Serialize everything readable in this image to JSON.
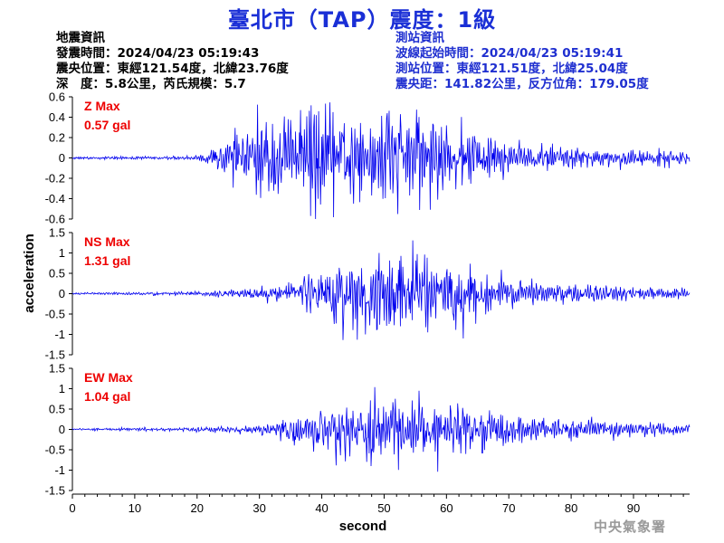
{
  "header": {
    "title": "臺北市（TAP）震度：1級",
    "quake_info_heading": "地震資訊",
    "origin_time": "發震時間：2024/04/23 05:19:43",
    "epicenter": "震央位置：東經121.54度，北緯23.76度",
    "depth_magnitude": "深　度：5.8公里，芮氏規模：5.7",
    "station_info_heading": "測站資訊",
    "wave_start_time": "波線起始時間：2024/04/23 05:19:41",
    "station_location": "測站位置：東經121.51度，北緯25.04度",
    "distance_azimuth": "震央距：141.82公里，反方位角：179.05度"
  },
  "footer": {
    "agency": "中央氣象署"
  },
  "colors": {
    "trace": "#0000ee",
    "annotation": "#ee0000",
    "title": "#1a2fd6",
    "station_text": "#1f2fd0"
  },
  "chart_data": {
    "type": "line",
    "xlabel": "second",
    "ylabel": "acceleration",
    "xlim": [
      0,
      99
    ],
    "xticks": [
      0,
      10,
      20,
      30,
      40,
      50,
      60,
      70,
      80,
      90
    ],
    "panels": [
      {
        "name": "Z",
        "label": "Z Max",
        "max_text": "0.57 gal",
        "ylim": [
          -0.6,
          0.6
        ],
        "yticks": [
          -0.6,
          -0.4,
          -0.2,
          0,
          0.2,
          0.4,
          0.6
        ],
        "ytick_labels": [
          "-0.6",
          "-0.4",
          "-0.2",
          "0",
          "0.2",
          "0.4",
          "0.6"
        ],
        "envelope": [
          [
            0,
            0.01
          ],
          [
            20,
            0.015
          ],
          [
            22,
            0.06
          ],
          [
            25,
            0.15
          ],
          [
            30,
            0.3
          ],
          [
            35,
            0.38
          ],
          [
            40,
            0.4
          ],
          [
            45,
            0.38
          ],
          [
            50,
            0.38
          ],
          [
            55,
            0.35
          ],
          [
            60,
            0.28
          ],
          [
            65,
            0.2
          ],
          [
            70,
            0.12
          ],
          [
            80,
            0.08
          ],
          [
            90,
            0.07
          ],
          [
            99,
            0.06
          ]
        ],
        "peaks": [
          [
            36.6,
            0.47
          ],
          [
            38.2,
            -0.57
          ],
          [
            50.5,
            0.44
          ],
          [
            52.6,
            0.43
          ],
          [
            45.1,
            -0.45
          ]
        ]
      },
      {
        "name": "NS",
        "label": "NS Max",
        "max_text": "1.31 gal",
        "ylim": [
          -1.5,
          1.5
        ],
        "yticks": [
          -1.5,
          -1,
          -0.5,
          0,
          0.5,
          1,
          1.5
        ],
        "ytick_labels": [
          "-1.5",
          "-1",
          "-0.5",
          "0",
          "0.5",
          "1",
          "1.5"
        ],
        "envelope": [
          [
            0,
            0.02
          ],
          [
            20,
            0.04
          ],
          [
            25,
            0.07
          ],
          [
            30,
            0.12
          ],
          [
            35,
            0.25
          ],
          [
            40,
            0.55
          ],
          [
            45,
            0.7
          ],
          [
            50,
            0.75
          ],
          [
            55,
            0.8
          ],
          [
            60,
            0.65
          ],
          [
            65,
            0.45
          ],
          [
            70,
            0.3
          ],
          [
            80,
            0.2
          ],
          [
            90,
            0.15
          ],
          [
            99,
            0.1
          ]
        ],
        "peaks": [
          [
            54.6,
            1.31
          ],
          [
            62.7,
            -1.1
          ],
          [
            49.2,
            1.0
          ],
          [
            57.0,
            -0.95
          ]
        ]
      },
      {
        "name": "EW",
        "label": "EW Max",
        "max_text": "1.04 gal",
        "ylim": [
          -1.5,
          1.5
        ],
        "yticks": [
          -1.5,
          -1,
          -0.5,
          0,
          0.5,
          1,
          1.5
        ],
        "ytick_labels": [
          "-1.5",
          "-1",
          "-0.5",
          "0",
          "0.5",
          "1",
          "1.5"
        ],
        "envelope": [
          [
            0,
            0.02
          ],
          [
            20,
            0.04
          ],
          [
            25,
            0.06
          ],
          [
            30,
            0.1
          ],
          [
            35,
            0.25
          ],
          [
            40,
            0.5
          ],
          [
            45,
            0.6
          ],
          [
            50,
            0.65
          ],
          [
            55,
            0.6
          ],
          [
            60,
            0.5
          ],
          [
            65,
            0.4
          ],
          [
            70,
            0.3
          ],
          [
            80,
            0.2
          ],
          [
            90,
            0.15
          ],
          [
            99,
            0.1
          ]
        ],
        "peaks": [
          [
            48.5,
            1.04
          ],
          [
            58.6,
            -1.04
          ],
          [
            55.6,
            0.95
          ],
          [
            47.9,
            -0.9
          ]
        ]
      }
    ]
  }
}
